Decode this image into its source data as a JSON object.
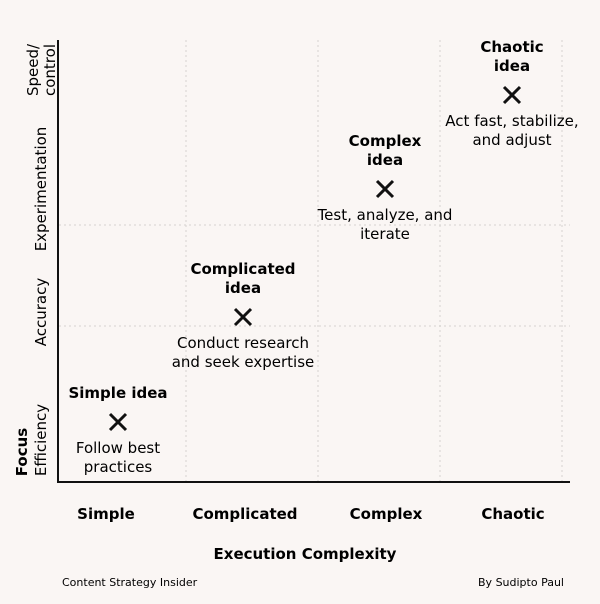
{
  "chart_data": {
    "type": "scatter",
    "title": "",
    "xlabel": "Execution Complexity",
    "ylabel": "Focus",
    "x_categories": [
      "Simple",
      "Complicated",
      "Complex",
      "Chaotic"
    ],
    "y_categories": [
      "Efficiency",
      "Accuracy",
      "Experimentation",
      "Speed/ control"
    ],
    "grid": true,
    "points": [
      {
        "x": "Simple",
        "y": "Efficiency",
        "name": "Simple idea",
        "note_lines": [
          "Follow best",
          "practices"
        ]
      },
      {
        "x": "Complicated",
        "y": "Accuracy",
        "name": "Complicated idea",
        "note_lines": [
          "Conduct research",
          "and seek expertise"
        ]
      },
      {
        "x": "Complex",
        "y": "Experimentation",
        "name": "Complex idea",
        "note_lines": [
          "Test, analyze, and",
          "iterate"
        ]
      },
      {
        "x": "Chaotic",
        "y": "Speed/ control",
        "name": "Chaotic idea",
        "note_lines": [
          "Act fast, stabilize,",
          "and adjust"
        ]
      }
    ]
  },
  "footer": {
    "left": "Content Strategy Insider",
    "right": "By Sudipto Paul"
  },
  "colors": {
    "background": "#faf6f4",
    "text": "#111111",
    "grid": "#d6d3d0",
    "axis": "#111111"
  }
}
